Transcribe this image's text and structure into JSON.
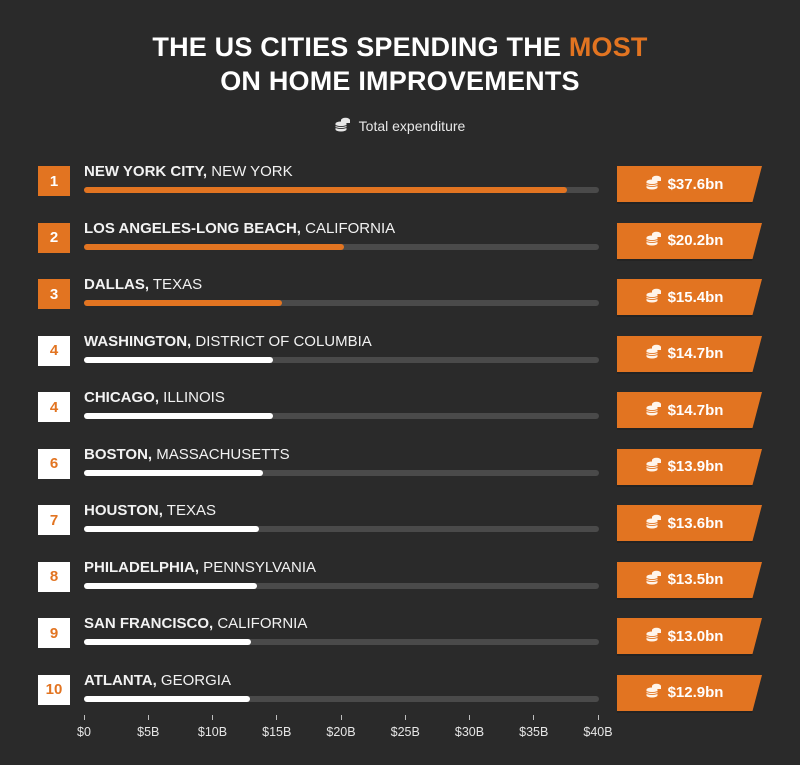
{
  "title": {
    "line1_pre": "THE US CITIES SPENDING THE ",
    "line1_highlight": "MOST",
    "line2": "ON HOME IMPROVEMENTS"
  },
  "legend": {
    "icon": "coins-icon",
    "label": "Total expenditure"
  },
  "colors": {
    "background": "#2a2a2a",
    "accent": "#e27421",
    "track": "#4a4a4a",
    "white": "#ffffff"
  },
  "rows": [
    {
      "rank": "1",
      "city": "NEW YORK CITY,",
      "state": " NEW YORK",
      "value": 37.6,
      "value_label": "$37.6bn",
      "highlight": true
    },
    {
      "rank": "2",
      "city": "LOS ANGELES-LONG BEACH,",
      "state": " CALIFORNIA",
      "value": 20.2,
      "value_label": "$20.2bn",
      "highlight": true
    },
    {
      "rank": "3",
      "city": "DALLAS,",
      "state": " TEXAS",
      "value": 15.4,
      "value_label": "$15.4bn",
      "highlight": true
    },
    {
      "rank": "4",
      "city": "WASHINGTON,",
      "state": " DISTRICT OF COLUMBIA",
      "value": 14.7,
      "value_label": "$14.7bn",
      "highlight": false
    },
    {
      "rank": "4",
      "city": "CHICAGO,",
      "state": " ILLINOIS",
      "value": 14.7,
      "value_label": "$14.7bn",
      "highlight": false
    },
    {
      "rank": "6",
      "city": "BOSTON,",
      "state": " MASSACHUSETTS",
      "value": 13.9,
      "value_label": "$13.9bn",
      "highlight": false
    },
    {
      "rank": "7",
      "city": "HOUSTON,",
      "state": " TEXAS",
      "value": 13.6,
      "value_label": "$13.6bn",
      "highlight": false
    },
    {
      "rank": "8",
      "city": "PHILADELPHIA,",
      "state": " PENNSYLVANIA",
      "value": 13.5,
      "value_label": "$13.5bn",
      "highlight": false
    },
    {
      "rank": "9",
      "city": "SAN FRANCISCO,",
      "state": " CALIFORNIA",
      "value": 13.0,
      "value_label": "$13.0bn",
      "highlight": false
    },
    {
      "rank": "10",
      "city": "ATLANTA,",
      "state": " GEORGIA",
      "value": 12.9,
      "value_label": "$12.9bn",
      "highlight": false
    }
  ],
  "axis": {
    "ticks": [
      "$0",
      "$5B",
      "$10B",
      "$15B",
      "$20B",
      "$25B",
      "$30B",
      "$35B",
      "$40B"
    ],
    "min": 0,
    "max": 40
  },
  "chart_data": {
    "type": "bar",
    "orientation": "horizontal",
    "title": "THE US CITIES SPENDING THE MOST ON HOME IMPROVEMENTS",
    "subtitle": "Total expenditure",
    "categories": [
      "New York City, New York",
      "Los Angeles-Long Beach, California",
      "Dallas, Texas",
      "Washington, District of Columbia",
      "Chicago, Illinois",
      "Boston, Massachusetts",
      "Houston, Texas",
      "Philadelphia, Pennsylvania",
      "San Francisco, California",
      "Atlanta, Georgia"
    ],
    "ranks": [
      1,
      2,
      3,
      4,
      4,
      6,
      7,
      8,
      9,
      10
    ],
    "values": [
      37.6,
      20.2,
      15.4,
      14.7,
      14.7,
      13.9,
      13.6,
      13.5,
      13.0,
      12.9
    ],
    "value_labels": [
      "$37.6bn",
      "$20.2bn",
      "$15.4bn",
      "$14.7bn",
      "$14.7bn",
      "$13.9bn",
      "$13.6bn",
      "$13.5bn",
      "$13.0bn",
      "$12.9bn"
    ],
    "xlabel": "",
    "ylabel": "",
    "unit": "USD billions",
    "xlim": [
      0,
      40
    ],
    "xticks": [
      "$0",
      "$5B",
      "$10B",
      "$15B",
      "$20B",
      "$25B",
      "$30B",
      "$35B",
      "$40B"
    ],
    "grid": false,
    "legend": [
      "Total expenditure"
    ]
  }
}
